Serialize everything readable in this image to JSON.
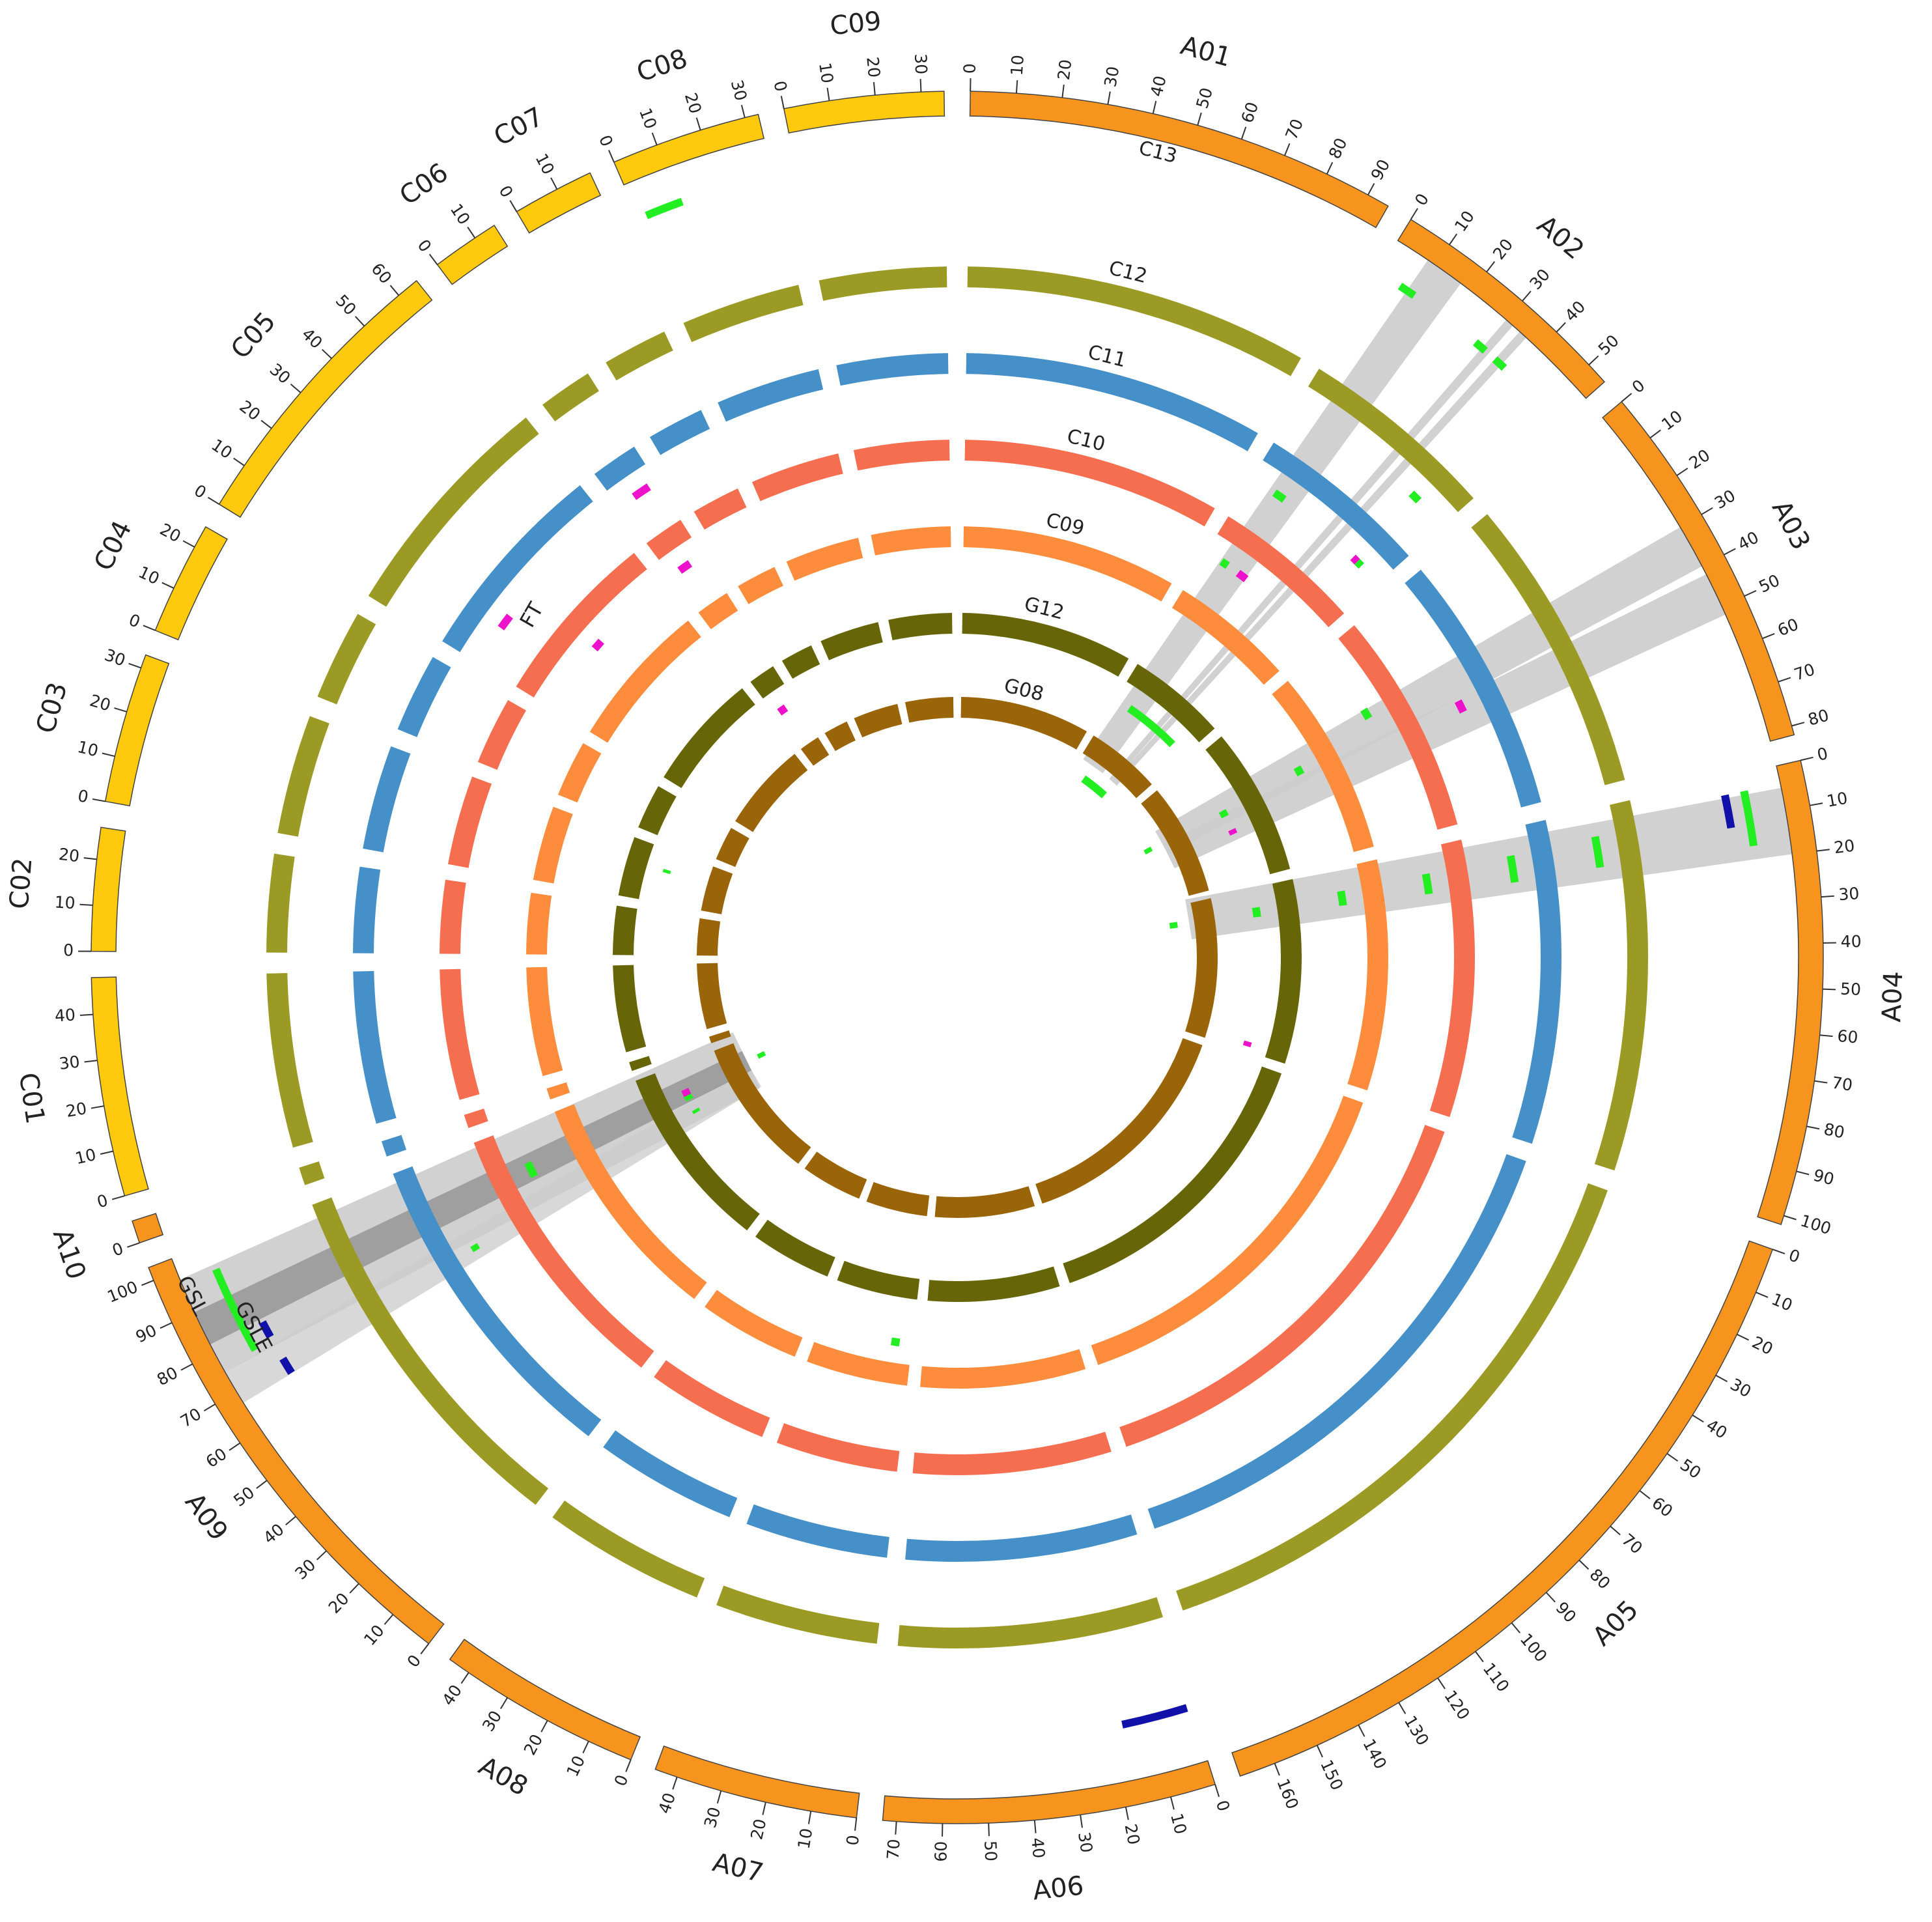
{
  "chart_data": {
    "type": "circos",
    "chromosomes": [
      {
        "name": "A01",
        "length": 95,
        "color": "#f7941d",
        "ticks": [
          0,
          10,
          20,
          30,
          40,
          50,
          60,
          70,
          80,
          90
        ]
      },
      {
        "name": "A02",
        "length": 55,
        "color": "#f7941d",
        "ticks": [
          0,
          10,
          20,
          30,
          40,
          50
        ]
      },
      {
        "name": "A03",
        "length": 82,
        "color": "#f7941d",
        "ticks": [
          0,
          10,
          20,
          30,
          40,
          50,
          60,
          70,
          80
        ]
      },
      {
        "name": "A04",
        "length": 102,
        "color": "#f7941d",
        "ticks": [
          0,
          10,
          20,
          30,
          40,
          50,
          60,
          70,
          80,
          90,
          100
        ]
      },
      {
        "name": "A05",
        "length": 168,
        "color": "#f7941d",
        "ticks": [
          0,
          10,
          20,
          30,
          40,
          50,
          60,
          70,
          80,
          90,
          100,
          110,
          120,
          130,
          140,
          150,
          160
        ]
      },
      {
        "name": "A06",
        "length": 73,
        "color": "#f7941d",
        "ticks": [
          0,
          10,
          20,
          30,
          40,
          50,
          60,
          70
        ]
      },
      {
        "name": "A07",
        "length": 45,
        "color": "#f7941d",
        "ticks": [
          0,
          10,
          20,
          30,
          40
        ]
      },
      {
        "name": "A08",
        "length": 45,
        "color": "#f7941d",
        "ticks": [
          0,
          10,
          20,
          30,
          40
        ]
      },
      {
        "name": "A09",
        "length": 103,
        "color": "#f7941d",
        "ticks": [
          0,
          10,
          20,
          30,
          40,
          50,
          60,
          70,
          80,
          90,
          100
        ]
      },
      {
        "name": "A10",
        "length": 5,
        "color": "#f7941d",
        "ticks": [
          0
        ]
      },
      {
        "name": "C01",
        "length": 48,
        "color": "#ffc90e",
        "ticks": [
          0,
          10,
          20,
          30,
          40
        ]
      },
      {
        "name": "C02",
        "length": 27,
        "color": "#ffc90e",
        "ticks": [
          0,
          10,
          20
        ]
      },
      {
        "name": "C03",
        "length": 33,
        "color": "#ffc90e",
        "ticks": [
          0,
          10,
          20,
          30
        ]
      },
      {
        "name": "C04",
        "length": 25,
        "color": "#ffc90e",
        "ticks": [
          0,
          10,
          20
        ]
      },
      {
        "name": "C05",
        "length": 65,
        "color": "#ffc90e",
        "ticks": [
          0,
          10,
          20,
          30,
          40,
          50,
          60
        ]
      },
      {
        "name": "C06",
        "length": 15,
        "color": "#ffc90e",
        "ticks": [
          0,
          10
        ]
      },
      {
        "name": "C07",
        "length": 18,
        "color": "#ffc90e",
        "ticks": [
          0,
          10
        ]
      },
      {
        "name": "C08",
        "length": 33,
        "color": "#ffc90e",
        "ticks": [
          0,
          10,
          20,
          30
        ]
      },
      {
        "name": "C09",
        "length": 35,
        "color": "#ffc90e",
        "ticks": [
          0,
          10,
          20,
          30
        ]
      }
    ],
    "tracks": [
      {
        "name": "C13"
      },
      {
        "name": "C12",
        "color": "#9a9a24"
      },
      {
        "name": "C11",
        "color": "#4590c8"
      },
      {
        "name": "C10",
        "color": "#f56e50"
      },
      {
        "name": "C09",
        "color": "#fd8c3c"
      },
      {
        "name": "G12",
        "color": "#666608"
      },
      {
        "name": "G08",
        "color": "#9a6408"
      }
    ],
    "traits": [
      {
        "name": "GSL",
        "color": "#22ee22"
      },
      {
        "name": "GSLE",
        "color": "#1111aa"
      },
      {
        "name": "FT",
        "color": "#ee11cc"
      }
    ],
    "qtls": [
      {
        "track": "C13",
        "trait": "GSL",
        "chrom": "C08",
        "start": 2,
        "end": 11
      },
      {
        "track": "C13",
        "trait": "GSL",
        "chrom": "A02",
        "start": 6,
        "end": 10
      },
      {
        "track": "C13",
        "trait": "GSL",
        "chrom": "A02",
        "start": 28,
        "end": 31
      },
      {
        "track": "C13",
        "trait": "GSL",
        "chrom": "A02",
        "start": 34,
        "end": 37
      },
      {
        "track": "C13",
        "trait": "GSL",
        "chrom": "A04",
        "start": 4,
        "end": 17
      },
      {
        "track": "C13",
        "trait": "GSLE",
        "chrom": "A04",
        "start": 4,
        "end": 12
      },
      {
        "track": "C13",
        "trait": "GSLE",
        "chrom": "A06",
        "start": 1,
        "end": 17
      },
      {
        "track": "C13",
        "trait": "GSL",
        "chrom": "A09",
        "start": 76,
        "end": 97
      },
      {
        "track": "C13",
        "trait": "GSLE",
        "chrom": "A09",
        "start": 77,
        "end": 81
      },
      {
        "track": "C13",
        "trait": "GSLE",
        "chrom": "A09",
        "start": 67,
        "end": 71
      },
      {
        "track": "C12",
        "trait": "GSL",
        "chrom": "A02",
        "start": 42,
        "end": 45
      },
      {
        "track": "C12",
        "trait": "GSL",
        "chrom": "A04",
        "start": 8,
        "end": 17
      },
      {
        "track": "C11",
        "trait": "GSL",
        "chrom": "A02",
        "start": 9,
        "end": 13
      },
      {
        "track": "C11",
        "trait": "GSL",
        "chrom": "A02",
        "start": 45,
        "end": 47
      },
      {
        "track": "C11",
        "trait": "FT",
        "chrom": "A02",
        "start": 43,
        "end": 45
      },
      {
        "track": "C11",
        "trait": "FT",
        "chrom": "A03",
        "start": 42,
        "end": 46
      },
      {
        "track": "C11",
        "trait": "GSL",
        "chrom": "A04",
        "start": 9,
        "end": 18
      },
      {
        "track": "C11",
        "trait": "FT",
        "chrom": "C05",
        "start": 14,
        "end": 19
      },
      {
        "track": "C11",
        "trait": "FT",
        "chrom": "C06",
        "start": 6,
        "end": 12
      },
      {
        "track": "C11",
        "trait": "GSL",
        "chrom": "A09",
        "start": 69,
        "end": 71
      },
      {
        "track": "C10",
        "trait": "GSL",
        "chrom": "A02",
        "start": 7,
        "end": 10
      },
      {
        "track": "C10",
        "trait": "FT",
        "chrom": "A02",
        "start": 15,
        "end": 19
      },
      {
        "track": "C10",
        "trait": "GSL",
        "chrom": "A03",
        "start": 28,
        "end": 32
      },
      {
        "track": "C10",
        "trait": "GSL",
        "chrom": "A04",
        "start": 10,
        "end": 18
      },
      {
        "track": "C10",
        "trait": "FT",
        "chrom": "C05",
        "start": 29,
        "end": 33
      },
      {
        "track": "C10",
        "trait": "FT",
        "chrom": "C06",
        "start": 4,
        "end": 9
      },
      {
        "track": "C10",
        "trait": "GSL",
        "chrom": "A09",
        "start": 82,
        "end": 88
      },
      {
        "track": "C09",
        "trait": "GSL",
        "chrom": "A03",
        "start": 35,
        "end": 39
      },
      {
        "track": "C09",
        "trait": "GSL",
        "chrom": "A04",
        "start": 11,
        "end": 18
      },
      {
        "track": "C09",
        "trait": "GSL",
        "chrom": "A07",
        "start": 6,
        "end": 10
      },
      {
        "track": "G12",
        "trait": "GSL",
        "chrom": "A02",
        "start": 10,
        "end": 45
      },
      {
        "track": "G12",
        "trait": "GSL",
        "chrom": "A03",
        "start": 36,
        "end": 40
      },
      {
        "track": "G12",
        "trait": "FT",
        "chrom": "A03",
        "start": 49,
        "end": 52
      },
      {
        "track": "G12",
        "trait": "GSL",
        "chrom": "A04",
        "start": 12,
        "end": 18
      },
      {
        "track": "G12",
        "trait": "FT",
        "chrom": "A04",
        "start": 96,
        "end": 99
      },
      {
        "track": "G12",
        "trait": "GSL",
        "chrom": "C03",
        "start": 19,
        "end": 21
      },
      {
        "track": "G12",
        "trait": "FT",
        "chrom": "C06",
        "start": 3,
        "end": 8
      },
      {
        "track": "G12",
        "trait": "GSL",
        "chrom": "A09",
        "start": 80,
        "end": 86
      },
      {
        "track": "G12",
        "trait": "FT",
        "chrom": "A09",
        "start": 83,
        "end": 87
      },
      {
        "track": "G12",
        "trait": "GSL",
        "chrom": "A09",
        "start": 71,
        "end": 73
      },
      {
        "track": "G08",
        "trait": "GSL",
        "chrom": "A02",
        "start": 12,
        "end": 35
      },
      {
        "track": "G08",
        "trait": "GSL",
        "chrom": "A03",
        "start": 33,
        "end": 37
      },
      {
        "track": "G08",
        "trait": "GSL",
        "chrom": "A04",
        "start": 13,
        "end": 18
      },
      {
        "track": "G08",
        "trait": "GSL",
        "chrom": "A09",
        "start": 83,
        "end": 87
      }
    ],
    "links": [
      {
        "chrom": "A02",
        "start": 8,
        "end": 17,
        "color": "#cccccc"
      },
      {
        "chrom": "A02",
        "start": 30,
        "end": 32,
        "color": "#cccccc"
      },
      {
        "chrom": "A02",
        "start": 34,
        "end": 36,
        "color": "#cccccc"
      },
      {
        "chrom": "A03",
        "start": 30,
        "end": 40,
        "color": "#cccccc"
      },
      {
        "chrom": "A03",
        "start": 42,
        "end": 52,
        "color": "#cccccc"
      },
      {
        "chrom": "A04",
        "start": 5,
        "end": 20,
        "color": "#cccccc"
      },
      {
        "chrom": "A09",
        "start": 67,
        "end": 75,
        "color": "#d4d4d4"
      },
      {
        "chrom": "A09",
        "start": 75,
        "end": 98,
        "color": "#cccccc"
      },
      {
        "chrom": "A09",
        "start": 82,
        "end": 90,
        "color": "#999999"
      }
    ]
  }
}
